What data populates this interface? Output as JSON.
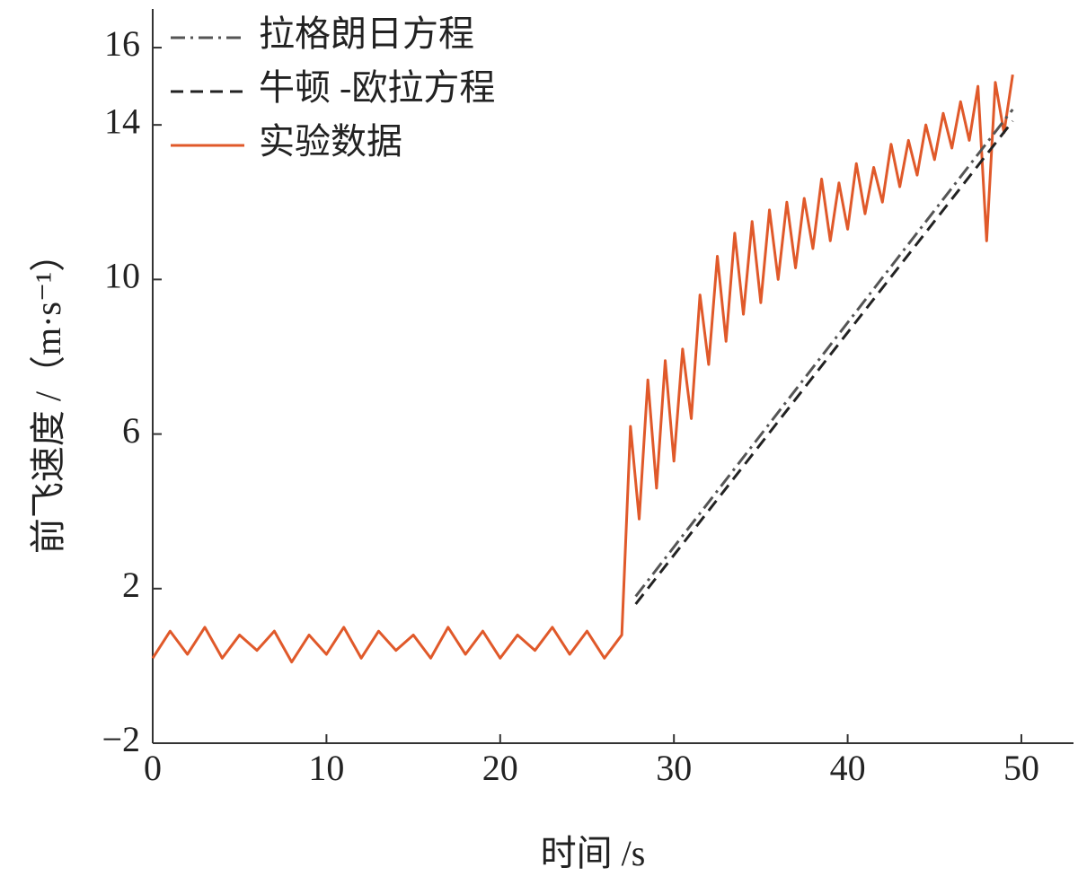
{
  "chart_data": {
    "type": "line",
    "xlabel": "时间 /s",
    "ylabel": "前飞速度 /（m·s⁻¹）",
    "xlim": [
      0,
      53
    ],
    "xticks": [
      0,
      10,
      20,
      30,
      40,
      50
    ],
    "ylim": [
      -2,
      17
    ],
    "yticks": [
      {
        "value": -2,
        "label": "−2"
      },
      2,
      6,
      10,
      14,
      16
    ],
    "legend": "upper-left",
    "series": [
      {
        "name": "拉格朗日方程",
        "color": "#555555",
        "dash": "dashdot",
        "x": [
          27.8,
          49.5
        ],
        "values": [
          1.8,
          14.4
        ]
      },
      {
        "name": "牛顿 -欧拉方程",
        "color": "#222222",
        "dash": "dashed",
        "x": [
          27.8,
          49.5
        ],
        "values": [
          1.6,
          14.1
        ]
      },
      {
        "name": "实验数据",
        "color": "#e0592a",
        "dash": "solid",
        "x": [
          0,
          1,
          2,
          3,
          4,
          5,
          6,
          7,
          8,
          9,
          10,
          11,
          12,
          13,
          14,
          15,
          16,
          17,
          18,
          19,
          20,
          21,
          22,
          23,
          24,
          25,
          26,
          27,
          27.5,
          28,
          28.5,
          29,
          29.5,
          30,
          30.5,
          31,
          31.5,
          32,
          32.5,
          33,
          33.5,
          34,
          34.5,
          35,
          35.5,
          36,
          36.5,
          37,
          37.5,
          38,
          38.5,
          39,
          39.5,
          40,
          40.5,
          41,
          41.5,
          42,
          42.5,
          43,
          43.5,
          44,
          44.5,
          45,
          45.5,
          46,
          46.5,
          47,
          47.5,
          48,
          48.5,
          49,
          49.5
        ],
        "values": [
          0.2,
          0.9,
          0.3,
          1.0,
          0.2,
          0.8,
          0.4,
          0.9,
          0.1,
          0.8,
          0.3,
          1.0,
          0.2,
          0.9,
          0.4,
          0.8,
          0.2,
          1.0,
          0.3,
          0.9,
          0.2,
          0.8,
          0.4,
          1.0,
          0.3,
          0.9,
          0.2,
          0.8,
          6.2,
          3.8,
          7.4,
          4.6,
          7.9,
          5.3,
          8.2,
          6.4,
          9.6,
          7.8,
          10.6,
          8.4,
          11.2,
          9.1,
          11.5,
          9.4,
          11.8,
          10.0,
          12.0,
          10.3,
          12.1,
          10.8,
          12.6,
          11.0,
          12.5,
          11.3,
          13.0,
          11.7,
          12.9,
          12.0,
          13.5,
          12.4,
          13.6,
          12.7,
          14.0,
          13.1,
          14.3,
          13.4,
          14.6,
          13.6,
          15.0,
          11.0,
          15.1,
          13.8,
          15.3
        ]
      }
    ]
  }
}
